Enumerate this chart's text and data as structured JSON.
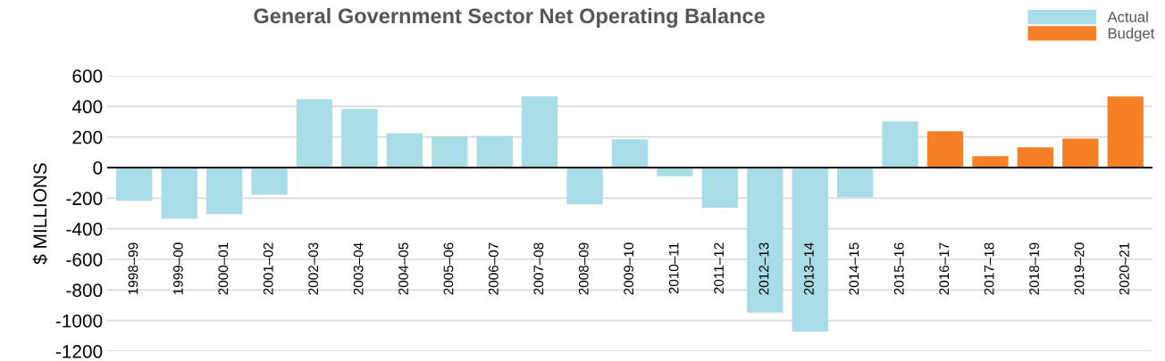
{
  "chart_data": {
    "type": "bar",
    "title": "General Government Sector Net Operating Balance",
    "ylabel": "$ MILLIONS",
    "categories": [
      "1998–99",
      "1999–00",
      "2000–01",
      "2001–02",
      "2002–03",
      "2003–04",
      "2004–05",
      "2005–06",
      "2006–07",
      "2007–08",
      "2008–09",
      "2009–10",
      "2010–11",
      "2011–12",
      "2012–13",
      "2013–14",
      "2014–15",
      "2015–16",
      "2016–17",
      "2017–18",
      "2018–19",
      "2019–20",
      "2020–21"
    ],
    "series": [
      {
        "name": "Actual",
        "color": "#a8dce6",
        "values": [
          -217,
          -333,
          -304,
          -178,
          447,
          383,
          225,
          202,
          207,
          464,
          -240,
          185,
          -57,
          -262,
          -948,
          -1072,
          -193,
          301,
          null,
          null,
          null,
          null,
          null
        ]
      },
      {
        "name": "Budget",
        "color": "#f58025",
        "values": [
          null,
          null,
          null,
          null,
          null,
          null,
          null,
          null,
          null,
          null,
          null,
          null,
          null,
          null,
          null,
          null,
          null,
          null,
          237,
          74,
          133,
          190,
          464
        ]
      }
    ],
    "ylim": [
      -1200,
      600
    ],
    "yticks": [
      -1200,
      -1000,
      -800,
      -600,
      -400,
      -200,
      0,
      200,
      400,
      600
    ],
    "grid": "y",
    "legend": "top right"
  }
}
